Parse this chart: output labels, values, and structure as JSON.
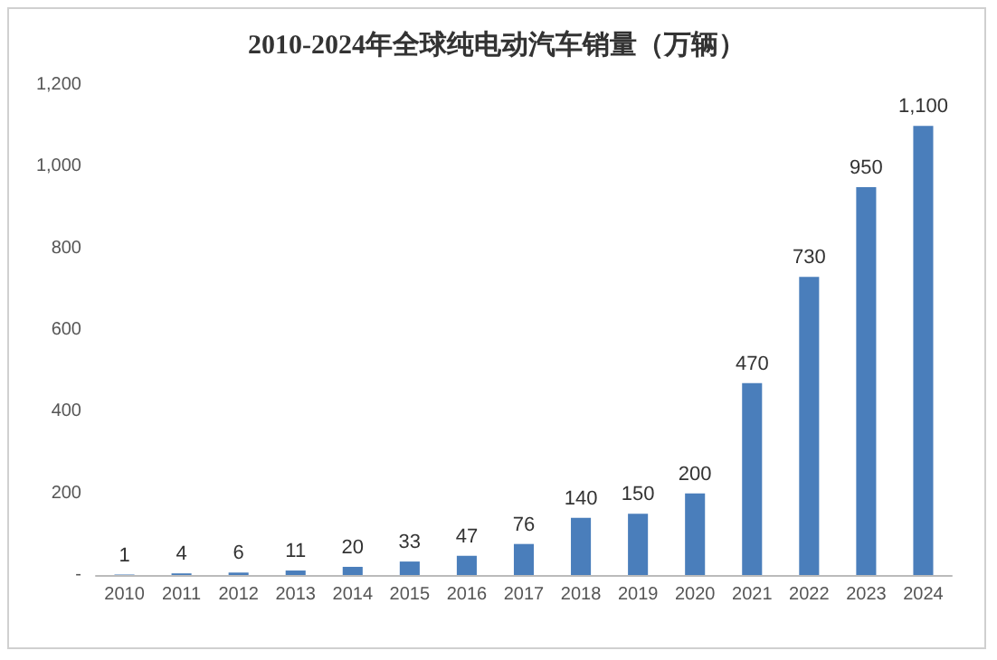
{
  "chart_data": {
    "type": "bar",
    "title": "2010-2024年全球纯电动汽车销量（万辆）",
    "categories": [
      "2010",
      "2011",
      "2012",
      "2013",
      "2014",
      "2015",
      "2016",
      "2017",
      "2018",
      "2019",
      "2020",
      "2021",
      "2022",
      "2023",
      "2024"
    ],
    "values": [
      1,
      4,
      6,
      11,
      20,
      33,
      47,
      76,
      140,
      150,
      200,
      470,
      730,
      950,
      1100
    ],
    "value_labels": [
      "1",
      "4",
      "6",
      "11",
      "20",
      "33",
      "47",
      "76",
      "140",
      "150",
      "200",
      "470",
      "730",
      "950",
      "1,100"
    ],
    "color": "#4a7ebb",
    "ylim": [
      0,
      1200
    ],
    "yticks": [
      {
        "value": 0,
        "label": "-"
      },
      {
        "value": 200,
        "label": "200"
      },
      {
        "value": 400,
        "label": "400"
      },
      {
        "value": 600,
        "label": "600"
      },
      {
        "value": 800,
        "label": "800"
      },
      {
        "value": 1000,
        "label": "1,000"
      },
      {
        "value": 1200,
        "label": "1,200"
      }
    ],
    "grid": false
  }
}
